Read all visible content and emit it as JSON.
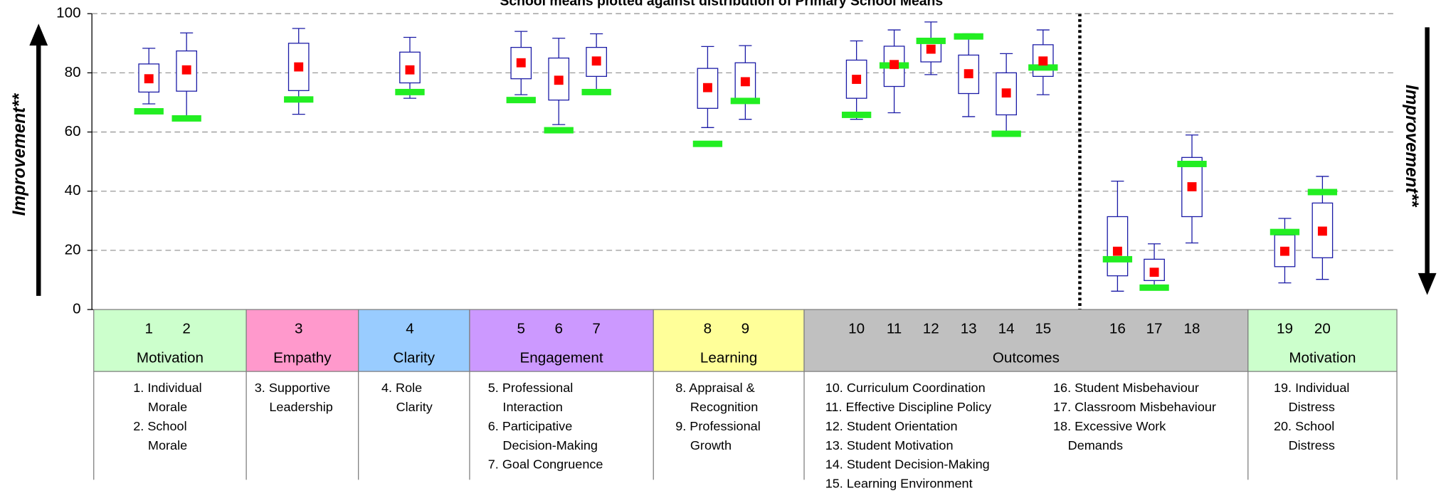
{
  "chart_data": {
    "type": "box",
    "title": "School means plotted against distribution of Primary School Means",
    "left_label": "Improvement**",
    "right_label": "Improvement**",
    "ylim": [
      0,
      100
    ],
    "yticks": [
      0,
      20,
      40,
      60,
      80,
      100
    ],
    "grid": true,
    "box_color": "#1a1aa6",
    "mean_color": "#ff0000",
    "benchmark_color": "#22ee22",
    "groups": [
      {
        "name": "Motivation",
        "color": "#ccffcc",
        "categories": [
          "1",
          "2"
        ],
        "boxes": [
          {
            "low": 69.5,
            "q1": 73.5,
            "q3": 83,
            "high": 88.3,
            "mean": 78,
            "benchmark": 67
          },
          {
            "low": 65,
            "q1": 73.8,
            "q3": 87.4,
            "high": 93.5,
            "mean": 81,
            "benchmark": 64.6
          }
        ],
        "columns": [
          [
            [
              "1. Individual",
              "Morale"
            ],
            [
              "2. School",
              "Morale"
            ]
          ]
        ]
      },
      {
        "name": "Empathy",
        "color": "#ff99cc",
        "categories": [
          "3"
        ],
        "boxes": [
          {
            "low": 66,
            "q1": 74,
            "q3": 90,
            "high": 95,
            "mean": 82,
            "benchmark": 71
          }
        ],
        "columns": [
          [
            [
              "3. Supportive",
              "Leadership"
            ]
          ]
        ]
      },
      {
        "name": "Clarity",
        "color": "#99ccff",
        "categories": [
          "4"
        ],
        "boxes": [
          {
            "low": 71.4,
            "q1": 76.6,
            "q3": 87,
            "high": 92,
            "mean": 81,
            "benchmark": 73.5
          }
        ],
        "columns": [
          [
            [
              "4. Role",
              "Clarity"
            ]
          ]
        ]
      },
      {
        "name": "Engagement",
        "color": "#cc99ff",
        "categories": [
          "5",
          "6",
          "7"
        ],
        "boxes": [
          {
            "low": 72.6,
            "q1": 78,
            "q3": 88.6,
            "high": 94,
            "mean": 83.4,
            "benchmark": 70.8
          },
          {
            "low": 62.5,
            "q1": 70.8,
            "q3": 85,
            "high": 91.7,
            "mean": 77.5,
            "benchmark": 60.6
          },
          {
            "low": 74,
            "q1": 78.8,
            "q3": 88.6,
            "high": 93.2,
            "mean": 84,
            "benchmark": 73.5
          }
        ],
        "columns": [
          [
            [
              "5. Professional",
              "Interaction"
            ],
            [
              "6. Participative",
              "Decision-Making"
            ],
            [
              "7. Goal Congruence"
            ]
          ]
        ]
      },
      {
        "name": "Learning",
        "color": "#ffff99",
        "categories": [
          "8",
          "9"
        ],
        "boxes": [
          {
            "low": 61.5,
            "q1": 68,
            "q3": 81.5,
            "high": 88.9,
            "mean": 75,
            "benchmark": 56
          },
          {
            "low": 64.3,
            "q1": 70.8,
            "q3": 83.4,
            "high": 89.2,
            "mean": 77,
            "benchmark": 70.5
          }
        ],
        "columns": [
          [
            [
              "8. Appraisal &",
              "Recognition"
            ],
            [
              "9. Professional",
              "Growth"
            ]
          ]
        ]
      },
      {
        "name": "Outcomes",
        "color": "#c0c0c0",
        "categories": [
          "10",
          "11",
          "12",
          "13",
          "14",
          "15",
          "16",
          "17",
          "18"
        ],
        "boxes": [
          {
            "low": 64.3,
            "q1": 71.4,
            "q3": 84.3,
            "high": 90.8,
            "mean": 77.8,
            "benchmark": 65.8
          },
          {
            "low": 66.5,
            "q1": 75.4,
            "q3": 89,
            "high": 94.5,
            "mean": 82.8,
            "benchmark": 82.5
          },
          {
            "low": 79.4,
            "q1": 83.7,
            "q3": 91.7,
            "high": 97.2,
            "mean": 88,
            "benchmark": 90.8
          },
          {
            "low": 65.2,
            "q1": 73,
            "q3": 86,
            "high": 93.2,
            "mean": 79.7,
            "benchmark": 92.3
          },
          {
            "low": 60,
            "q1": 65.8,
            "q3": 80,
            "high": 86.5,
            "mean": 73.2,
            "benchmark": 59.4
          },
          {
            "low": 72.6,
            "q1": 78.8,
            "q3": 89.5,
            "high": 94.5,
            "mean": 84,
            "benchmark": 81.8
          },
          {
            "low": 6.2,
            "q1": 11.4,
            "q3": 31.4,
            "high": 43.4,
            "mean": 19.7,
            "benchmark": 17
          },
          {
            "low": 8,
            "q1": 9.8,
            "q3": 17,
            "high": 22.2,
            "mean": 12.6,
            "benchmark": 7.4
          },
          {
            "low": 22.5,
            "q1": 31.4,
            "q3": 51.4,
            "high": 59,
            "mean": 41.5,
            "benchmark": 49.2
          }
        ],
        "columns": [
          [
            [
              "10. Curriculum Coordination"
            ],
            [
              "11. Effective Discipline Policy"
            ],
            [
              "12. Student Orientation"
            ],
            [
              "13. Student Motivation"
            ],
            [
              "14. Student Decision-Making"
            ],
            [
              "15. Learning Environment"
            ]
          ],
          [
            [
              "16. Student Misbehaviour"
            ],
            [
              "17. Classroom Misbehaviour"
            ],
            [
              "18. Excessive Work",
              "Demands"
            ]
          ]
        ]
      },
      {
        "name": "Motivation",
        "color": "#ccffcc",
        "categories": [
          "19",
          "20"
        ],
        "boxes": [
          {
            "low": 9,
            "q1": 14.5,
            "q3": 25.2,
            "high": 30.8,
            "mean": 19.7,
            "benchmark": 26.2
          },
          {
            "low": 10.2,
            "q1": 17.5,
            "q3": 36,
            "high": 45,
            "mean": 26.5,
            "benchmark": 39.7
          }
        ],
        "columns": [
          [
            [
              "19. Individual",
              "Distress"
            ],
            [
              "20. School",
              "Distress"
            ]
          ]
        ]
      }
    ]
  }
}
